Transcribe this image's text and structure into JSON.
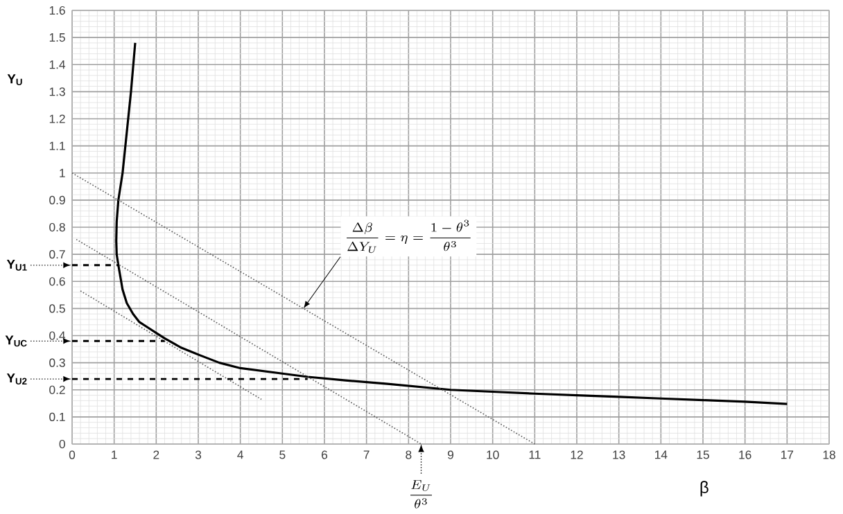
{
  "chart_data": {
    "type": "line",
    "xlabel": "β",
    "ylabel": "Y$_{U}$",
    "xlim": [
      0,
      18
    ],
    "ylim": [
      0,
      1.6
    ],
    "xticks": [
      0,
      1,
      2,
      3,
      4,
      5,
      6,
      7,
      8,
      9,
      10,
      11,
      12,
      13,
      14,
      15,
      16,
      17,
      18
    ],
    "yticks": [
      0,
      0.1,
      0.2,
      0.3,
      0.4,
      0.5,
      0.6,
      0.7,
      0.8,
      0.9,
      1,
      1.1,
      1.2,
      1.3,
      1.4,
      1.5,
      1.6
    ],
    "grid": true,
    "marker": "none",
    "series": [
      {
        "color": "#000000",
        "line_style": "solid",
        "x": [
          1.5,
          1.4,
          1.2,
          1.1,
          1.06,
          1.05,
          1.06,
          1.1,
          1.2,
          1.3,
          1.45,
          1.6,
          1.8,
          2,
          2.2,
          2.6,
          3,
          3.5,
          4,
          4.5,
          5,
          5.6,
          6.5,
          7.5,
          9,
          10,
          11,
          12,
          13,
          14,
          15,
          16,
          17
        ],
        "values": [
          1.48,
          1.3,
          1.0,
          0.9,
          0.82,
          0.75,
          0.7,
          0.66,
          0.57,
          0.52,
          0.48,
          0.45,
          0.43,
          0.41,
          0.39,
          0.355,
          0.33,
          0.3,
          0.28,
          0.27,
          0.26,
          0.248,
          0.235,
          0.222,
          0.2,
          0.193,
          0.186,
          0.18,
          0.174,
          0.168,
          0.162,
          0.156,
          0.148
        ]
      },
      {
        "color": "#555555",
        "line_style": "dotted",
        "x": [
          0,
          11
        ],
        "values": [
          1,
          0
        ]
      },
      {
        "color": "#555555",
        "line_style": "dotted",
        "x": [
          0.1,
          8.3
        ],
        "values": [
          0.755,
          0
        ]
      },
      {
        "color": "#555555",
        "line_style": "dotted",
        "x": [
          0.2,
          4.5
        ],
        "values": [
          0.565,
          0.165
        ]
      },
      {
        "color": "#000000",
        "line_style": "dashed",
        "x": [
          0,
          1.1
        ],
        "values": [
          0.66,
          0.66
        ]
      },
      {
        "color": "#000000",
        "line_style": "dashed",
        "x": [
          0,
          2.2
        ],
        "values": [
          0.38,
          0.38
        ]
      },
      {
        "color": "#000000",
        "line_style": "dashed",
        "x": [
          0,
          5.6
        ],
        "values": [
          0.24,
          0.24
        ]
      }
    ],
    "annotations": [
      "Y$_{U1}$",
      "Y$_{UC}$",
      "Y$_{U2}$",
      {
        "text": "\\frac{\\Delta\\beta}{\\Delta Y_U}=\\eta=\\frac{1-\\theta^3}{\\theta^3}",
        "x": 5.5,
        "y": 0.5
      },
      {
        "text": "\\frac{E_U}{\\theta^3}",
        "x": 8.3,
        "y": 0
      }
    ]
  }
}
